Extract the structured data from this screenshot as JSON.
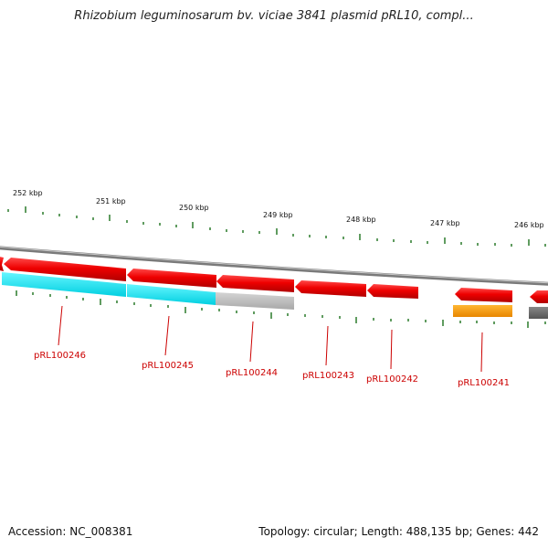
{
  "title": "Rhizobium leguminosarum bv. viciae 3841 plasmid pRL10, compl...",
  "footer": {
    "accession": "Accession: NC_008381",
    "summary": "Topology: circular; Length: 488,135 bp; Genes: 442"
  },
  "scale": {
    "ticks": [
      {
        "label": "252 kbp"
      },
      {
        "label": "251 kbp"
      },
      {
        "label": "250 kbp"
      },
      {
        "label": "249 kbp"
      },
      {
        "label": "248 kbp"
      },
      {
        "label": "247 kbp"
      },
      {
        "label": "246 kbp"
      }
    ]
  },
  "genes": [
    {
      "label": "pRL100246"
    },
    {
      "label": "pRL100245"
    },
    {
      "label": "pRL100244"
    },
    {
      "label": "pRL100243"
    },
    {
      "label": "pRL100242"
    },
    {
      "label": "pRL100241"
    }
  ],
  "colors": {
    "backbone": "#888888",
    "gene_forward": "#ee0000",
    "cds_cyan": "#00e5ee",
    "cds_gray": "#bbbbbb",
    "cds_orange": "#ff9900",
    "cds_dark": "#666666",
    "tick": "#2a7a2a",
    "label": "#cc0000"
  }
}
